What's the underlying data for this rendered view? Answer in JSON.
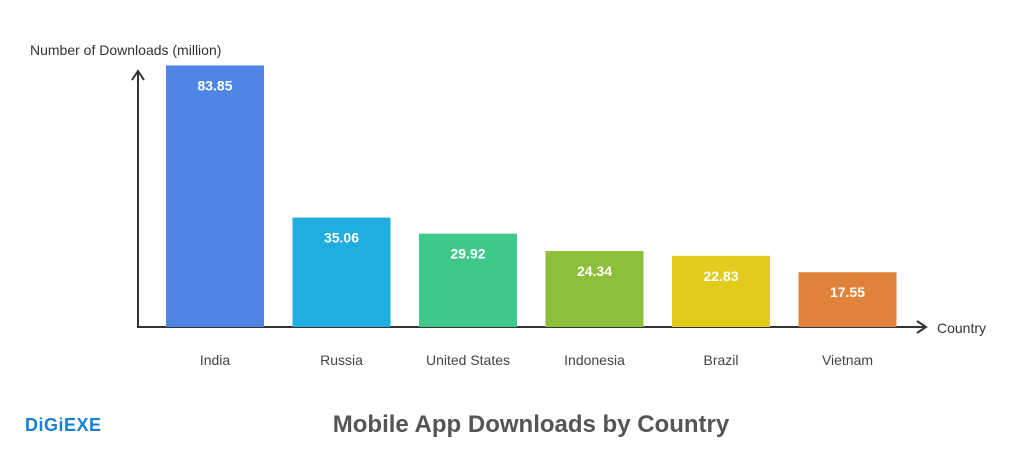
{
  "brand": {
    "logo_text": "DiGiEXE",
    "logo_color": "#1a7fd6"
  },
  "chart_data": {
    "type": "bar",
    "title": "Mobile App Downloads by Country",
    "ylabel": "Number of Downloads (million)",
    "xlabel": "Country",
    "categories": [
      "India",
      "Russia",
      "United States",
      "Indonesia",
      "Brazil",
      "Vietnam"
    ],
    "values": [
      83.85,
      35.06,
      29.92,
      24.34,
      22.83,
      17.55
    ],
    "value_labels": [
      "83.85",
      "35.06",
      "29.92",
      "24.34",
      "22.83",
      "17.55"
    ],
    "colors": [
      "#4f86e6",
      "#20aee0",
      "#3fc88a",
      "#8dbf3a",
      "#e3cb1c",
      "#e0823a"
    ],
    "ylim": [
      0,
      90
    ],
    "grid": false,
    "legend": "none"
  }
}
